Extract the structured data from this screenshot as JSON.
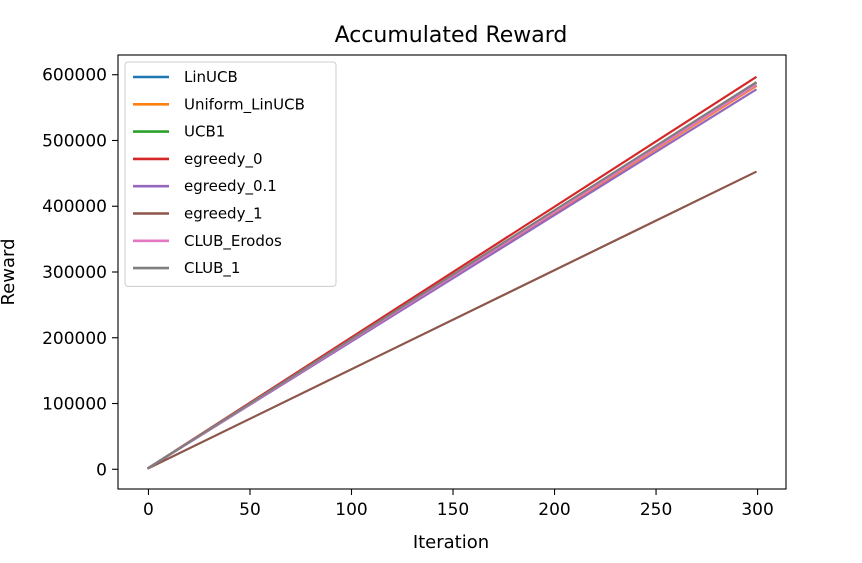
{
  "chart_data": {
    "type": "line",
    "title": "Accumulated Reward",
    "xlabel": "Iteration",
    "ylabel": "Reward",
    "xlim": [
      -15,
      314
    ],
    "ylim": [
      -30000,
      630000
    ],
    "xticks": [
      0,
      50,
      100,
      150,
      200,
      250,
      300
    ],
    "yticks": [
      0,
      100000,
      200000,
      300000,
      400000,
      500000,
      600000
    ],
    "xtick_labels": [
      "0",
      "50",
      "100",
      "150",
      "200",
      "250",
      "300"
    ],
    "ytick_labels": [
      "0",
      "100000",
      "200000",
      "300000",
      "400000",
      "500000",
      "600000"
    ],
    "grid": false,
    "legend_position": "upper-left",
    "series": [
      {
        "name": "LinUCB",
        "color": "#1f77b4",
        "x": [
          0,
          299
        ],
        "values": [
          2000,
          583000
        ]
      },
      {
        "name": "Uniform_LinUCB",
        "color": "#ff7f0e",
        "x": [
          0,
          299
        ],
        "values": [
          2000,
          582000
        ]
      },
      {
        "name": "UCB1",
        "color": "#2ca02c",
        "x": [
          0,
          299
        ],
        "values": [
          2000,
          587000
        ]
      },
      {
        "name": "egreedy_0",
        "color": "#d62728",
        "x": [
          0,
          299
        ],
        "values": [
          2000,
          596000
        ]
      },
      {
        "name": "egreedy_0.1",
        "color": "#9467bd",
        "x": [
          0,
          299
        ],
        "values": [
          2000,
          577000
        ]
      },
      {
        "name": "egreedy_1",
        "color": "#8c564b",
        "x": [
          0,
          299
        ],
        "values": [
          1500,
          452000
        ]
      },
      {
        "name": "CLUB_Erodos",
        "color": "#e377c2",
        "x": [
          0,
          299
        ],
        "values": [
          2000,
          584000
        ]
      },
      {
        "name": "CLUB_1",
        "color": "#7f7f7f",
        "x": [
          0,
          299
        ],
        "values": [
          2000,
          588000
        ]
      }
    ]
  }
}
